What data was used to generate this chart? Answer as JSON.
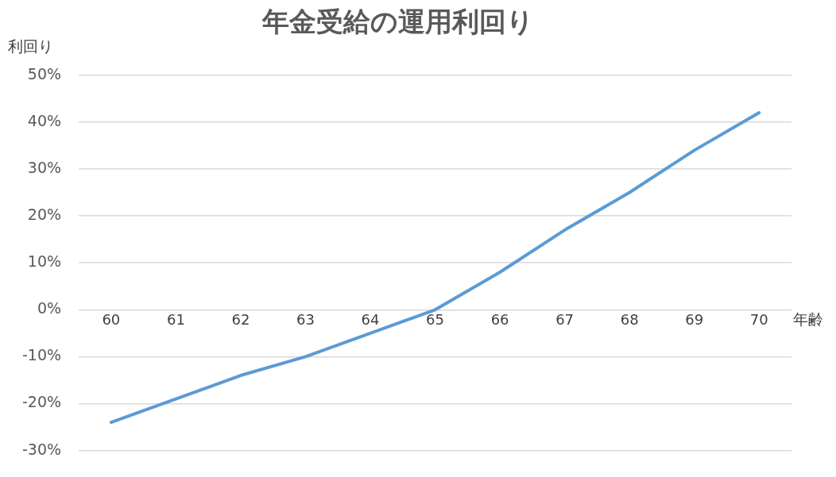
{
  "chart_data": {
    "type": "line",
    "title": "年金受給の運用利回り",
    "xlabel": "年齢",
    "ylabel": "利回り",
    "categories": [
      "60",
      "61",
      "62",
      "63",
      "64",
      "65",
      "66",
      "67",
      "68",
      "69",
      "70"
    ],
    "series": [
      {
        "color": "#5b9bd5",
        "values": [
          -24,
          -19,
          -14,
          -10,
          -5,
          0,
          8,
          17,
          25,
          34,
          42
        ]
      }
    ],
    "ylim": [
      -30,
      50
    ],
    "yticks": [
      {
        "value": -30,
        "label": "-30%"
      },
      {
        "value": -20,
        "label": "-20%"
      },
      {
        "value": -10,
        "label": "-10%"
      },
      {
        "value": 0,
        "label": "0%"
      },
      {
        "value": 10,
        "label": "10%"
      },
      {
        "value": 20,
        "label": "20%"
      },
      {
        "value": 30,
        "label": "30%"
      },
      {
        "value": 40,
        "label": "40%"
      },
      {
        "value": 50,
        "label": "50%"
      }
    ],
    "grid": "y",
    "legend": false,
    "marker": "none",
    "line_style": "solid"
  }
}
